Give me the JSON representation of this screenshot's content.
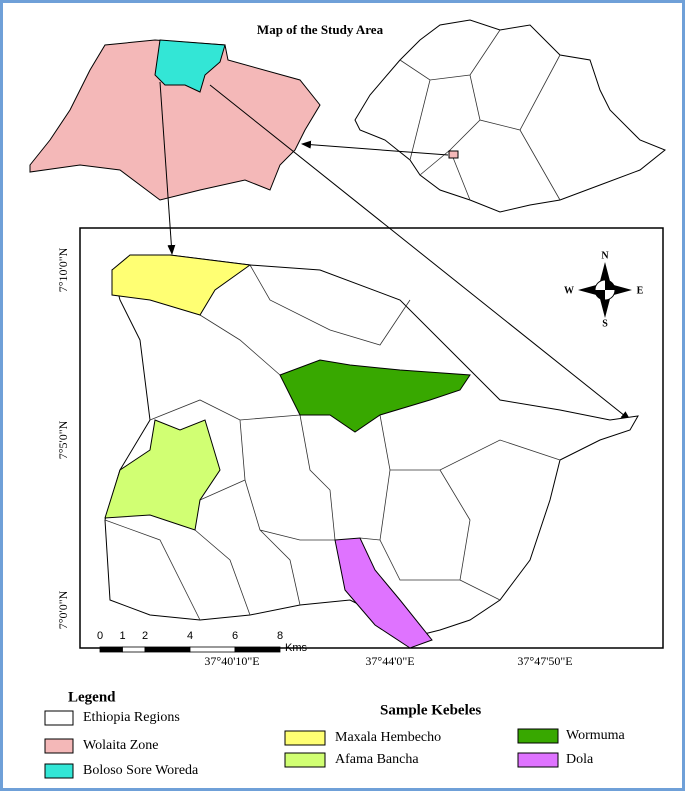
{
  "title": "Map of the Study Area",
  "latitude_labels": [
    "7°10'0\"N",
    "7°5'0\"N",
    "7°0'0\"N"
  ],
  "longitude_labels": [
    "37°40'10\"E",
    "37°44'0\"E",
    "37°47'50\"E"
  ],
  "scale_bar": {
    "ticks": [
      "0",
      "1",
      "2",
      "4",
      "6",
      "8"
    ],
    "unit": "Kms"
  },
  "compass": {
    "north": "N",
    "south": "S",
    "east": "E",
    "west": "W"
  },
  "legend": {
    "title": "Legend",
    "items": [
      {
        "label": "Ethiopia Regions",
        "color": "#ffffff"
      },
      {
        "label": "Wolaita Zone",
        "color": "#f4b8b8"
      },
      {
        "label": "Boloso Sore Woreda",
        "color": "#33e6d6"
      }
    ]
  },
  "sample_kebeles": {
    "title": "Sample Kebeles",
    "items": [
      {
        "label": "Maxala Hembecho",
        "color": "#ffff73"
      },
      {
        "label": "Afama Bancha",
        "color": "#d1ff73"
      },
      {
        "label": "Wormuma",
        "color": "#38a800"
      },
      {
        "label": "Dola",
        "color": "#df73ff"
      }
    ]
  }
}
